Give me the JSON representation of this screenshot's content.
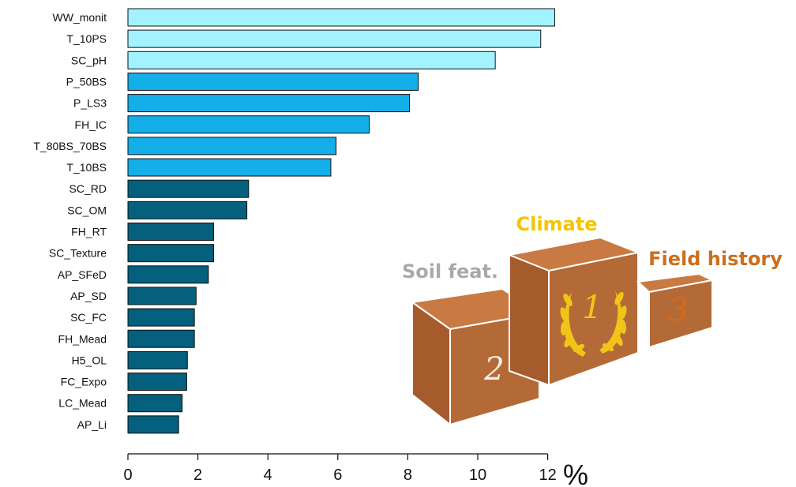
{
  "chart_data": {
    "type": "bar",
    "orientation": "horizontal",
    "categories": [
      "WW_monit",
      "T_10PS",
      "SC_pH",
      "P_50BS",
      "P_LS3",
      "FH_IC",
      "T_80BS_70BS",
      "T_10BS",
      "SC_RD",
      "SC_OM",
      "FH_RT",
      "SC_Texture",
      "AP_SFeD",
      "AP_SD",
      "SC_FC",
      "FH_Mead",
      "H5_OL",
      "FC_Expo",
      "LC_Mead",
      "AP_Li"
    ],
    "values": [
      12.2,
      11.8,
      10.5,
      8.3,
      8.05,
      6.9,
      5.95,
      5.8,
      3.45,
      3.4,
      2.45,
      2.45,
      2.3,
      1.95,
      1.9,
      1.9,
      1.7,
      1.68,
      1.55,
      1.45
    ],
    "groups": [
      1,
      1,
      1,
      2,
      2,
      2,
      2,
      2,
      3,
      3,
      3,
      3,
      3,
      3,
      3,
      3,
      3,
      3,
      3,
      3
    ],
    "group_colors": {
      "1": "#a3f2ff",
      "2": "#14aee9",
      "3": "#04607c"
    },
    "xticks": [
      "0",
      "2",
      "4",
      "6",
      "8",
      "10",
      "12"
    ],
    "xlim": [
      0,
      12
    ],
    "unit": "%",
    "title": "",
    "xlabel": "",
    "ylabel": ""
  },
  "podium": {
    "first_label": "Climate",
    "second_label": "Soil feat.",
    "third_label": "Field history",
    "first_number": "1",
    "second_number": "2",
    "third_number": "3",
    "first_color": "#f5c400",
    "second_color": "#a9a9a9",
    "third_color": "#cd6e1c",
    "box_color": "#b8703a"
  }
}
